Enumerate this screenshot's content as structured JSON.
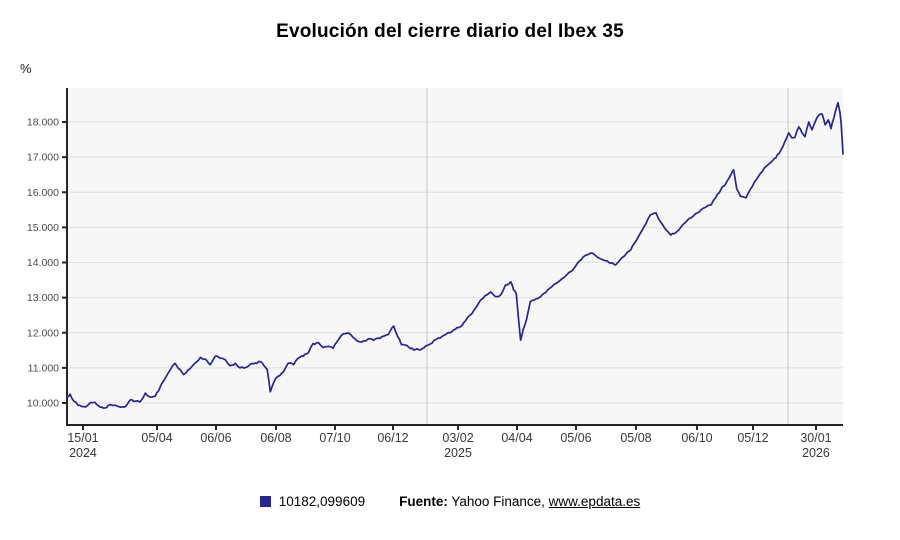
{
  "header": {
    "title": "Evolución del cierre diario del Ibex 35"
  },
  "colors": {
    "accent": "#26268c",
    "plot_bg": "#f7f7f7",
    "grid": "#e0e0e0",
    "year_line": "#c5c5c5",
    "axis": "#262626",
    "tick_text": "#4a4a4a"
  },
  "legend": {
    "swatch_color": "#26268c",
    "value_label": "10182,099609"
  },
  "footer": {
    "source_label": "Fuente:",
    "source_rest": " Yahoo Finance, ",
    "source_link": "www.epdata.es"
  },
  "chart_data": {
    "type": "line",
    "title": "Evolución del cierre diario del Ibex 35",
    "xlabel": "",
    "ylabel": "%",
    "grid": true,
    "legend_position": "bottom",
    "ylim": [
      9370,
      18970
    ],
    "x_range_dates": [
      "15/01/2024",
      "06/02/2026"
    ],
    "y_ticks": [
      {
        "value": 10000,
        "label": "10.000"
      },
      {
        "value": 11000,
        "label": "11.000"
      },
      {
        "value": 12000,
        "label": "12.000"
      },
      {
        "value": 13000,
        "label": "13.000"
      },
      {
        "value": 14000,
        "label": "14.000"
      },
      {
        "value": 15000,
        "label": "15.000"
      },
      {
        "value": 16000,
        "label": "16.000"
      },
      {
        "value": 17000,
        "label": "17.000"
      },
      {
        "value": 18000,
        "label": "18.000"
      }
    ],
    "x_ticks": [
      {
        "t": 0.0206,
        "label": "15/01",
        "year": "2024"
      },
      {
        "t": 0.116,
        "label": "05/04",
        "year": ""
      },
      {
        "t": 0.192,
        "label": "06/06",
        "year": ""
      },
      {
        "t": 0.2693,
        "label": "06/08",
        "year": ""
      },
      {
        "t": 0.3454,
        "label": "07/10",
        "year": ""
      },
      {
        "t": 0.4201,
        "label": "06/12",
        "year": ""
      },
      {
        "t": 0.5039,
        "label": "03/02",
        "year": "2025"
      },
      {
        "t": 0.5799,
        "label": "04/04",
        "year": ""
      },
      {
        "t": 0.6559,
        "label": "05/06",
        "year": ""
      },
      {
        "t": 0.7332,
        "label": "05/08",
        "year": ""
      },
      {
        "t": 0.8118,
        "label": "06/10",
        "year": ""
      },
      {
        "t": 0.884,
        "label": "05/12",
        "year": ""
      },
      {
        "t": 0.9652,
        "label": "30/01",
        "year": "2026"
      }
    ],
    "year_gridlines_t": [
      0.4639,
      0.9291
    ],
    "noise_amplitude": 28,
    "noise_seed": 7,
    "series": [
      {
        "name": "10182,099609",
        "color": "#26268c",
        "points": [
          [
            0.0,
            10182
          ],
          [
            0.004,
            10250
          ],
          [
            0.009,
            10050
          ],
          [
            0.014,
            9940
          ],
          [
            0.019,
            9900
          ],
          [
            0.0245,
            9890
          ],
          [
            0.03,
            10010
          ],
          [
            0.036,
            10020
          ],
          [
            0.0425,
            9880
          ],
          [
            0.049,
            9860
          ],
          [
            0.0555,
            9950
          ],
          [
            0.062,
            9940
          ],
          [
            0.068,
            9890
          ],
          [
            0.075,
            9890
          ],
          [
            0.081,
            10080
          ],
          [
            0.088,
            10050
          ],
          [
            0.094,
            10030
          ],
          [
            0.101,
            10280
          ],
          [
            0.107,
            10170
          ],
          [
            0.1135,
            10190
          ],
          [
            0.12,
            10450
          ],
          [
            0.1265,
            10700
          ],
          [
            0.133,
            10940
          ],
          [
            0.139,
            11130
          ],
          [
            0.143,
            11000
          ],
          [
            0.15,
            10810
          ],
          [
            0.156,
            10940
          ],
          [
            0.163,
            11090
          ],
          [
            0.172,
            11300
          ],
          [
            0.178,
            11250
          ],
          [
            0.1845,
            11090
          ],
          [
            0.191,
            11330
          ],
          [
            0.197,
            11280
          ],
          [
            0.204,
            11230
          ],
          [
            0.21,
            11060
          ],
          [
            0.217,
            11130
          ],
          [
            0.223,
            11000
          ],
          [
            0.23,
            11010
          ],
          [
            0.236,
            11100
          ],
          [
            0.2425,
            11140
          ],
          [
            0.249,
            11180
          ],
          [
            0.254,
            11060
          ],
          [
            0.258,
            10950
          ],
          [
            0.262,
            10320
          ],
          [
            0.267,
            10620
          ],
          [
            0.272,
            10760
          ],
          [
            0.279,
            10890
          ],
          [
            0.285,
            11130
          ],
          [
            0.292,
            11090
          ],
          [
            0.298,
            11280
          ],
          [
            0.3045,
            11330
          ],
          [
            0.311,
            11430
          ],
          [
            0.317,
            11690
          ],
          [
            0.324,
            11720
          ],
          [
            0.33,
            11580
          ],
          [
            0.337,
            11610
          ],
          [
            0.343,
            11560
          ],
          [
            0.35,
            11810
          ],
          [
            0.356,
            11970
          ],
          [
            0.363,
            11990
          ],
          [
            0.369,
            11860
          ],
          [
            0.3755,
            11750
          ],
          [
            0.382,
            11770
          ],
          [
            0.388,
            11820
          ],
          [
            0.395,
            11790
          ],
          [
            0.401,
            11850
          ],
          [
            0.408,
            11900
          ],
          [
            0.414,
            11950
          ],
          [
            0.421,
            12190
          ],
          [
            0.426,
            11900
          ],
          [
            0.431,
            11660
          ],
          [
            0.436,
            11650
          ],
          [
            0.4425,
            11550
          ],
          [
            0.449,
            11520
          ],
          [
            0.4555,
            11510
          ],
          [
            0.462,
            11620
          ],
          [
            0.468,
            11680
          ],
          [
            0.475,
            11800
          ],
          [
            0.481,
            11850
          ],
          [
            0.488,
            11950
          ],
          [
            0.494,
            12000
          ],
          [
            0.5005,
            12100
          ],
          [
            0.507,
            12170
          ],
          [
            0.5135,
            12340
          ],
          [
            0.52,
            12510
          ],
          [
            0.5265,
            12700
          ],
          [
            0.533,
            12930
          ],
          [
            0.539,
            13060
          ],
          [
            0.546,
            13160
          ],
          [
            0.552,
            13030
          ],
          [
            0.559,
            13080
          ],
          [
            0.565,
            13360
          ],
          [
            0.572,
            13450
          ],
          [
            0.5755,
            13220
          ],
          [
            0.579,
            13100
          ],
          [
            0.5845,
            11790
          ],
          [
            0.588,
            12100
          ],
          [
            0.592,
            12360
          ],
          [
            0.597,
            12880
          ],
          [
            0.604,
            12960
          ],
          [
            0.61,
            13020
          ],
          [
            0.617,
            13150
          ],
          [
            0.623,
            13280
          ],
          [
            0.63,
            13400
          ],
          [
            0.636,
            13500
          ],
          [
            0.6425,
            13620
          ],
          [
            0.649,
            13740
          ],
          [
            0.6555,
            13900
          ],
          [
            0.662,
            14070
          ],
          [
            0.668,
            14200
          ],
          [
            0.675,
            14270
          ],
          [
            0.681,
            14200
          ],
          [
            0.688,
            14100
          ],
          [
            0.694,
            14050
          ],
          [
            0.7005,
            13980
          ],
          [
            0.707,
            13930
          ],
          [
            0.7135,
            14100
          ],
          [
            0.72,
            14230
          ],
          [
            0.7265,
            14360
          ],
          [
            0.733,
            14600
          ],
          [
            0.739,
            14840
          ],
          [
            0.746,
            15100
          ],
          [
            0.752,
            15360
          ],
          [
            0.759,
            15410
          ],
          [
            0.765,
            15150
          ],
          [
            0.772,
            14930
          ],
          [
            0.778,
            14780
          ],
          [
            0.7845,
            14850
          ],
          [
            0.791,
            15010
          ],
          [
            0.797,
            15140
          ],
          [
            0.804,
            15270
          ],
          [
            0.81,
            15390
          ],
          [
            0.817,
            15500
          ],
          [
            0.823,
            15570
          ],
          [
            0.83,
            15640
          ],
          [
            0.836,
            15850
          ],
          [
            0.8425,
            16070
          ],
          [
            0.849,
            16250
          ],
          [
            0.8555,
            16500
          ],
          [
            0.859,
            16640
          ],
          [
            0.863,
            16100
          ],
          [
            0.868,
            15880
          ],
          [
            0.875,
            15840
          ],
          [
            0.881,
            16100
          ],
          [
            0.888,
            16350
          ],
          [
            0.894,
            16550
          ],
          [
            0.9005,
            16730
          ],
          [
            0.907,
            16850
          ],
          [
            0.9135,
            16980
          ],
          [
            0.92,
            17200
          ],
          [
            0.925,
            17440
          ],
          [
            0.93,
            17690
          ],
          [
            0.934,
            17550
          ],
          [
            0.938,
            17560
          ],
          [
            0.943,
            17860
          ],
          [
            0.947,
            17700
          ],
          [
            0.951,
            17580
          ],
          [
            0.956,
            18000
          ],
          [
            0.96,
            17780
          ],
          [
            0.964,
            18000
          ],
          [
            0.969,
            18200
          ],
          [
            0.973,
            18230
          ],
          [
            0.977,
            17920
          ],
          [
            0.981,
            18060
          ],
          [
            0.9845,
            17810
          ],
          [
            0.988,
            18100
          ],
          [
            0.9935,
            18550
          ],
          [
            0.996,
            18280
          ],
          [
            0.9975,
            18000
          ],
          [
            1.0,
            17090
          ]
        ]
      }
    ]
  }
}
